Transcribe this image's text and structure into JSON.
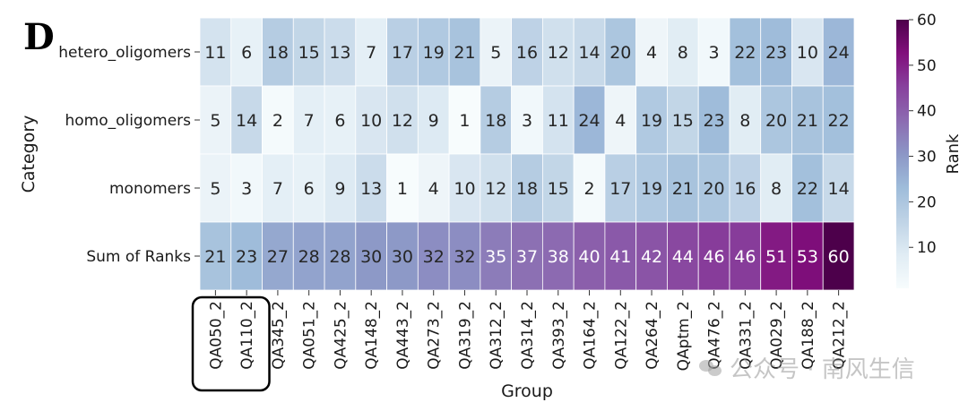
{
  "panel_label": "D",
  "watermark": {
    "text": "公众号 · 南风生信",
    "icon": "wechat-icon"
  },
  "chart_data": {
    "type": "heatmap",
    "title": "",
    "xlabel": "Group",
    "ylabel": "Category",
    "colorbar_label": "Rank",
    "colormap": "BuPu",
    "vmin": 1,
    "vmax": 60,
    "colorbar_ticks": [
      10,
      20,
      30,
      40,
      50,
      60
    ],
    "rows": [
      "hetero_oligomers",
      "homo_oligomers",
      "monomers",
      "Sum of Ranks"
    ],
    "columns": [
      "QA050_2",
      "QA110_2",
      "QA345_2",
      "QA051_2",
      "QA425_2",
      "QA148_2",
      "QA443_2",
      "QA273_2",
      "QA319_2",
      "QA312_2",
      "QA314_2",
      "QA393_2",
      "QA164_2",
      "QA122_2",
      "QA264_2",
      "QAptm_2",
      "QA476_2",
      "QA331_2",
      "QA029_2",
      "QA188_2",
      "QA212_2"
    ],
    "values": [
      [
        11,
        6,
        18,
        15,
        13,
        7,
        17,
        19,
        21,
        5,
        16,
        12,
        14,
        20,
        4,
        8,
        3,
        22,
        23,
        10,
        24
      ],
      [
        5,
        14,
        2,
        7,
        6,
        10,
        12,
        9,
        1,
        18,
        3,
        11,
        24,
        4,
        19,
        15,
        23,
        8,
        20,
        21,
        22
      ],
      [
        5,
        3,
        7,
        6,
        9,
        13,
        1,
        4,
        10,
        12,
        18,
        15,
        2,
        17,
        19,
        21,
        20,
        16,
        8,
        22,
        14
      ],
      [
        21,
        23,
        27,
        28,
        28,
        30,
        30,
        32,
        32,
        35,
        37,
        38,
        40,
        41,
        42,
        44,
        46,
        46,
        51,
        53,
        60
      ]
    ],
    "highlighted_columns": [
      "QA050_2",
      "QA110_2"
    ],
    "annotation_threshold_color": {
      "dark_text": "#262626",
      "light_text": "#ffffff"
    }
  }
}
